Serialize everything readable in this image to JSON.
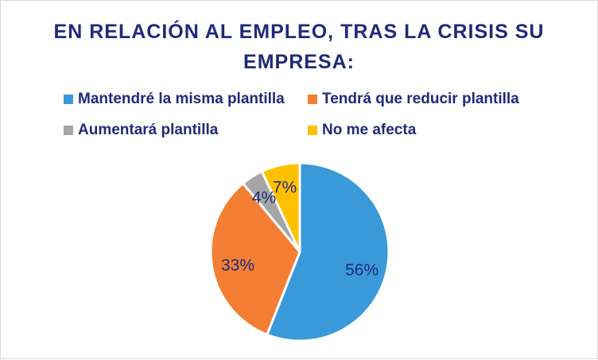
{
  "chart_data": {
    "type": "pie",
    "title": "EN RELACIÓN AL EMPLEO, TRAS LA CRISIS SU EMPRESA:",
    "legend_position": "top",
    "series": [
      {
        "name": "Mantendré la misma plantilla",
        "value": 56,
        "label": "56%",
        "color": "#3a9ad9"
      },
      {
        "name": "Tendrá que reducir plantilla",
        "value": 33,
        "label": "33%",
        "color": "#f47e34"
      },
      {
        "name": "Aumentará plantilla",
        "value": 4,
        "label": "4%",
        "color": "#a5a5a5"
      },
      {
        "name": "No me afecta",
        "value": 7,
        "label": "7%",
        "color": "#ffc000"
      }
    ]
  }
}
